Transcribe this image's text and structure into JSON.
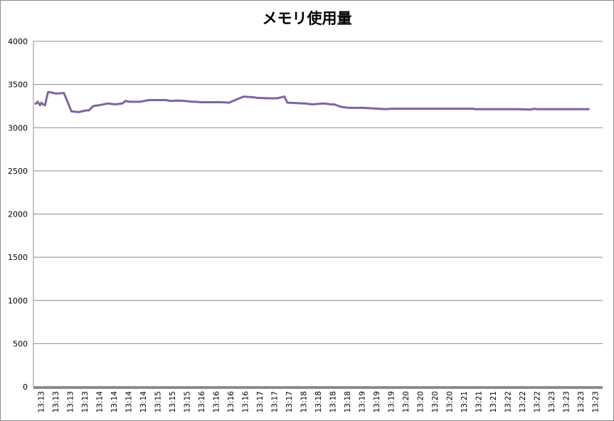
{
  "chart_data": {
    "type": "line",
    "title": "メモリ使用量",
    "xlabel": "",
    "ylabel": "",
    "ylim": [
      0,
      4000
    ],
    "yticks": [
      0,
      500,
      1000,
      1500,
      2000,
      2500,
      3000,
      3500,
      4000
    ],
    "grid": true,
    "legend": "none",
    "x_tick_labels": [
      "13:13",
      "13:13",
      "13:13",
      "13:13",
      "13:14",
      "13:14",
      "13:14",
      "13:14",
      "13:15",
      "13:15",
      "13:15",
      "13:16",
      "13:16",
      "13:16",
      "13:16",
      "13:17",
      "13:17",
      "13:17",
      "13:18",
      "13:18",
      "13:18",
      "13:18",
      "13:19",
      "13:19",
      "13:19",
      "13:20",
      "13:20",
      "13:20",
      "13:20",
      "13:21",
      "13:21",
      "13:21",
      "13:22",
      "13:22",
      "13:22",
      "13:23",
      "13:23",
      "13:23",
      "13:23"
    ],
    "series": [
      {
        "name": "",
        "color": "#7e64a0",
        "x_index": [
          0,
          0.2,
          0.35,
          0.45,
          0.55,
          0.7,
          0.8,
          0.9,
          1.1,
          1.3,
          1.5,
          1.8,
          2,
          2.5,
          3,
          3.5,
          3.7,
          4,
          4.4,
          5,
          5.5,
          6,
          6.2,
          6.5,
          7.2,
          7.5,
          7.8,
          8.3,
          9,
          9.3,
          9.8,
          10.3,
          10.8,
          11,
          11.4,
          11.5,
          12.3,
          12.8,
          13.3,
          14.3,
          15.1,
          15.2,
          16,
          16.6,
          17.1,
          17.3,
          18.5,
          19,
          19.8,
          20.3,
          20.5,
          21,
          21.5,
          22,
          22.5,
          23.5,
          24.1,
          24.4,
          26,
          28,
          30,
          30.2,
          32,
          33,
          34,
          34.2,
          34.4,
          35.3,
          38
        ],
        "values": [
          3270,
          3300,
          3260,
          3290,
          3270,
          3260,
          3340,
          3410,
          3410,
          3400,
          3395,
          3400,
          3400,
          3190,
          3180,
          3200,
          3200,
          3250,
          3260,
          3280,
          3270,
          3280,
          3310,
          3300,
          3300,
          3310,
          3320,
          3320,
          3320,
          3310,
          3315,
          3310,
          3300,
          3300,
          3295,
          3295,
          3295,
          3295,
          3290,
          3360,
          3350,
          3345,
          3340,
          3340,
          3360,
          3290,
          3280,
          3270,
          3280,
          3270,
          3270,
          3240,
          3230,
          3230,
          3230,
          3220,
          3215,
          3220,
          3220,
          3220,
          3220,
          3215,
          3215,
          3215,
          3210,
          3220,
          3215,
          3215,
          3215
        ]
      }
    ]
  }
}
